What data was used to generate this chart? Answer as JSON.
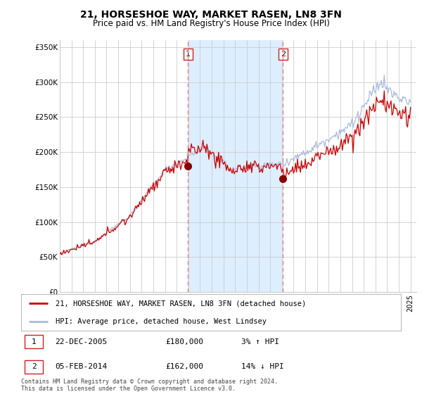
{
  "title": "21, HORSESHOE WAY, MARKET RASEN, LN8 3FN",
  "subtitle": "Price paid vs. HM Land Registry's House Price Index (HPI)",
  "legend_red": "21, HORSESHOE WAY, MARKET RASEN, LN8 3FN (detached house)",
  "legend_blue": "HPI: Average price, detached house, West Lindsey",
  "transaction1_date": "22-DEC-2005",
  "transaction1_price": 180000,
  "transaction1_hpi": "3% ↑ HPI",
  "transaction2_date": "05-FEB-2014",
  "transaction2_price": 162000,
  "transaction2_hpi": "14% ↓ HPI",
  "footer": "Contains HM Land Registry data © Crown copyright and database right 2024.\nThis data is licensed under the Open Government Licence v3.0.",
  "ylim": [
    0,
    360000
  ],
  "yticks": [
    0,
    50000,
    100000,
    150000,
    200000,
    250000,
    300000,
    350000
  ],
  "ytick_labels": [
    "£0",
    "£50K",
    "£100K",
    "£150K",
    "£200K",
    "£250K",
    "£300K",
    "£350K"
  ],
  "background_color": "#ffffff",
  "grid_color": "#cccccc",
  "red_line_color": "#cc0000",
  "blue_line_color": "#aabbdd",
  "highlight_fill": "#ddeeff",
  "dashed_line_color": "#ee8888",
  "marker_color": "#880000",
  "transaction1_x": 2005.97,
  "transaction2_x": 2014.09
}
